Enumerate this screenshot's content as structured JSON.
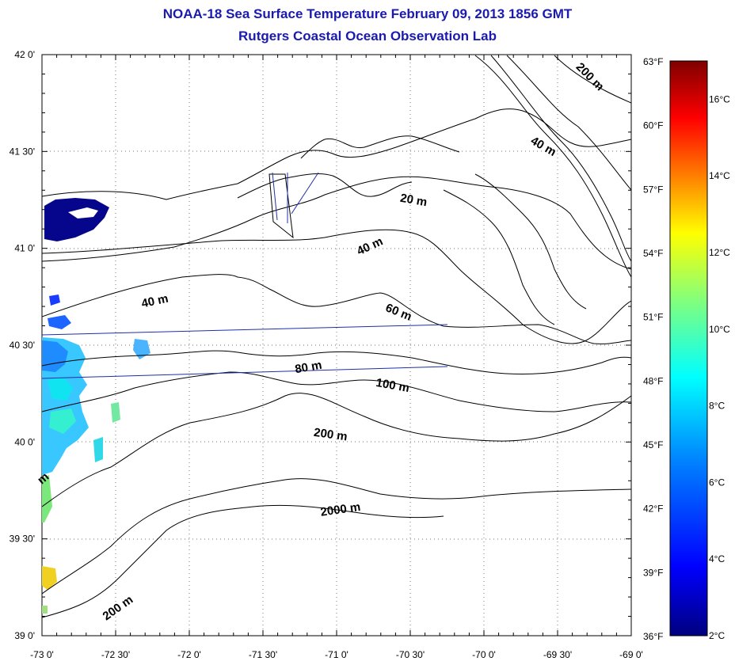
{
  "title": "NOAA-18 Sea Surface Temperature February 09, 2013 1856 GMT",
  "subtitle": "Rutgers Coastal Ocean Observation Lab",
  "map": {
    "lon_range": [
      -73.0,
      -69.0
    ],
    "lat_range": [
      39.0,
      42.0
    ],
    "x_tick_labels": [
      "-73 0'",
      "-72 30'",
      "-72 0'",
      "-71 30'",
      "-71 0'",
      "-70 30'",
      "-70 0'",
      "-69 30'",
      "-69 0'"
    ],
    "y_tick_labels": [
      "42 0'",
      "41 30'",
      "41 0'",
      "40 30'",
      "40 0'",
      "39 30'",
      "39 0'"
    ],
    "grid": "dotted",
    "line_color": "#000000",
    "track_color": "#1f2fa8"
  },
  "fahrenheit_scale": [
    "63°F",
    "60°F",
    "57°F",
    "54°F",
    "51°F",
    "48°F",
    "45°F",
    "42°F",
    "39°F",
    "36°F"
  ],
  "colorbar": {
    "range_c": [
      2,
      17
    ],
    "labels": [
      "16°C",
      "14°C",
      "12°C",
      "10°C",
      "8°C",
      "6°C",
      "4°C",
      "2°C"
    ],
    "colors": [
      "#00007f",
      "#0000ff",
      "#007fff",
      "#00ffff",
      "#7fff7f",
      "#ffff00",
      "#ff7f00",
      "#ff0000",
      "#7f0000"
    ]
  },
  "contour_labels": [
    {
      "text": "200 m"
    },
    {
      "text": "40 m"
    },
    {
      "text": "20 m"
    },
    {
      "text": "40 m"
    },
    {
      "text": "40 m"
    },
    {
      "text": "60 m"
    },
    {
      "text": "80 m"
    },
    {
      "text": "100 m"
    },
    {
      "text": "200 m"
    },
    {
      "text": "2000 m"
    },
    {
      "text": "200 m"
    },
    {
      "text": "m"
    }
  ]
}
